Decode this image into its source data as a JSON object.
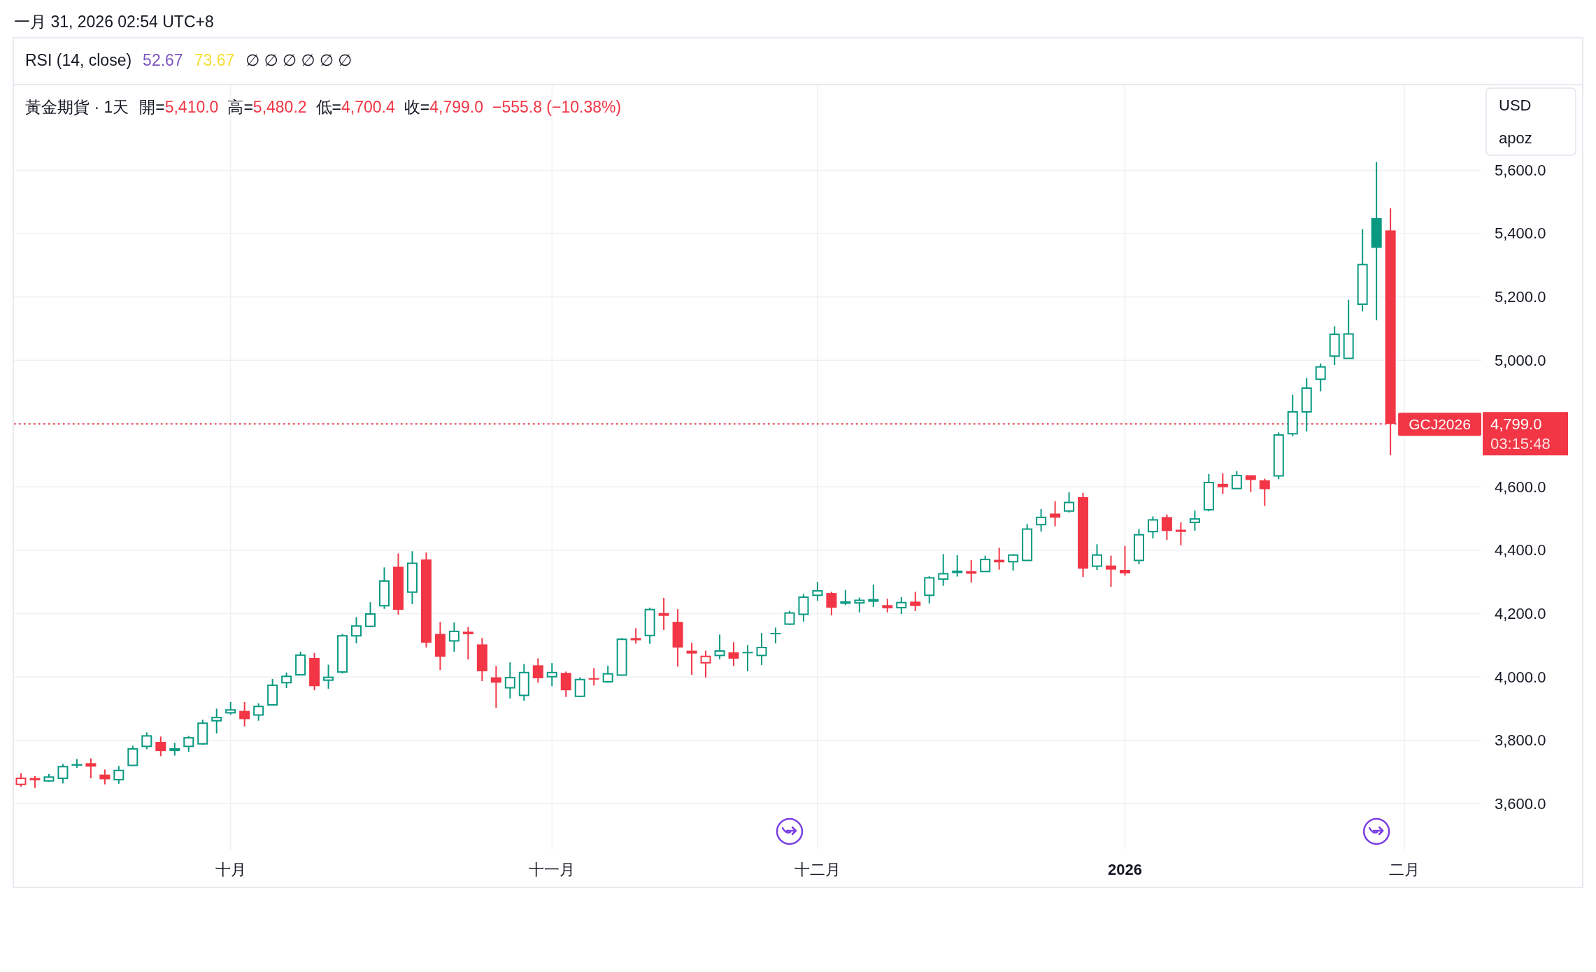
{
  "chart_data": {
    "type": "candlestick",
    "title": "黃金期貨 · 1天",
    "subtitle": "一月 31, 2026 02:54 UTC+8",
    "categories": [
      null,
      null,
      null,
      null,
      null,
      null,
      null,
      null,
      null,
      null,
      null,
      null,
      null,
      null,
      null,
      "十月",
      null,
      null,
      null,
      null,
      null,
      null,
      null,
      null,
      null,
      null,
      null,
      null,
      null,
      null,
      null,
      null,
      null,
      null,
      null,
      null,
      null,
      null,
      "十一月",
      null,
      null,
      null,
      null,
      null,
      null,
      null,
      null,
      null,
      null,
      null,
      null,
      null,
      null,
      null,
      null,
      null,
      null,
      "十二月",
      null,
      null,
      null,
      null,
      null,
      null,
      null,
      null,
      null,
      null,
      null,
      null,
      null,
      null,
      null,
      null,
      null,
      null,
      null,
      null,
      null,
      "2026",
      null,
      null,
      null,
      null,
      null,
      null,
      null,
      null,
      null,
      null,
      null,
      null,
      null,
      null,
      null,
      null,
      null,
      null,
      null,
      "二月"
    ],
    "ohlc": [
      [
        3661,
        3696,
        3654,
        3680
      ],
      [
        3681,
        3687,
        3650,
        3674
      ],
      [
        3672,
        3694,
        3669,
        3684
      ],
      [
        3680,
        3725,
        3664,
        3717
      ],
      [
        3725,
        3741,
        3713,
        3720
      ],
      [
        3728,
        3743,
        3680,
        3717
      ],
      [
        3692,
        3708,
        3661,
        3677
      ],
      [
        3676,
        3719,
        3663,
        3705
      ],
      [
        3721,
        3783,
        3721,
        3773
      ],
      [
        3781,
        3825,
        3772,
        3814
      ],
      [
        3795,
        3812,
        3750,
        3766
      ],
      [
        3771,
        3792,
        3752,
        3773
      ],
      [
        3781,
        3814,
        3764,
        3808
      ],
      [
        3789,
        3865,
        3786,
        3854
      ],
      [
        3862,
        3900,
        3822,
        3872
      ],
      [
        3887,
        3921,
        3881,
        3896
      ],
      [
        3893,
        3921,
        3844,
        3867
      ],
      [
        3880,
        3917,
        3862,
        3907
      ],
      [
        3912,
        3994,
        3910,
        3974
      ],
      [
        3982,
        4014,
        3965,
        4002
      ],
      [
        4007,
        4080,
        4006,
        4069
      ],
      [
        4060,
        4076,
        3958,
        3971
      ],
      [
        3990,
        4039,
        3963,
        3999
      ],
      [
        4016,
        4136,
        4011,
        4130
      ],
      [
        4130,
        4189,
        4106,
        4161
      ],
      [
        4160,
        4236,
        4157,
        4199
      ],
      [
        4225,
        4346,
        4215,
        4303
      ],
      [
        4348,
        4390,
        4197,
        4212
      ],
      [
        4268,
        4397,
        4230,
        4359
      ],
      [
        4371,
        4393,
        4093,
        4108
      ],
      [
        4136,
        4174,
        4022,
        4064
      ],
      [
        4114,
        4172,
        4080,
        4144
      ],
      [
        4143,
        4158,
        4055,
        4135
      ],
      [
        4103,
        4123,
        3987,
        4018
      ],
      [
        3999,
        4035,
        3903,
        3982
      ],
      [
        3966,
        4046,
        3932,
        3998
      ],
      [
        3942,
        4041,
        3925,
        4014
      ],
      [
        4037,
        4059,
        3982,
        3996
      ],
      [
        4001,
        4044,
        3971,
        4014
      ],
      [
        4013,
        4017,
        3937,
        3958
      ],
      [
        3939,
        3999,
        3936,
        3992
      ],
      [
        3994,
        4028,
        3973,
        3990
      ],
      [
        3985,
        4035,
        3982,
        4010
      ],
      [
        4006,
        4123,
        4005,
        4119
      ],
      [
        4123,
        4154,
        4105,
        4116
      ],
      [
        4131,
        4219,
        4105,
        4213
      ],
      [
        4202,
        4250,
        4148,
        4193
      ],
      [
        4174,
        4214,
        4033,
        4093
      ],
      [
        4083,
        4108,
        4007,
        4074
      ],
      [
        4045,
        4083,
        3998,
        4065
      ],
      [
        4068,
        4134,
        4056,
        4082
      ],
      [
        4078,
        4110,
        4035,
        4058
      ],
      [
        4077,
        4101,
        4018,
        4075
      ],
      [
        4068,
        4139,
        4038,
        4093
      ],
      [
        4137,
        4156,
        4106,
        4135
      ],
      [
        4167,
        4209,
        4164,
        4202
      ],
      [
        4198,
        4262,
        4175,
        4252
      ],
      [
        4258,
        4300,
        4241,
        4272
      ],
      [
        4265,
        4269,
        4195,
        4219
      ],
      [
        4239,
        4274,
        4227,
        4231
      ],
      [
        4234,
        4251,
        4204,
        4242
      ],
      [
        4243,
        4292,
        4221,
        4244
      ],
      [
        4227,
        4247,
        4204,
        4217
      ],
      [
        4219,
        4252,
        4199,
        4235
      ],
      [
        4238,
        4269,
        4208,
        4224
      ],
      [
        4258,
        4318,
        4232,
        4313
      ],
      [
        4309,
        4388,
        4288,
        4326
      ],
      [
        4336,
        4385,
        4317,
        4328
      ],
      [
        4334,
        4369,
        4298,
        4326
      ],
      [
        4333,
        4383,
        4332,
        4371
      ],
      [
        4370,
        4408,
        4339,
        4362
      ],
      [
        4364,
        4388,
        4336,
        4385
      ],
      [
        4368,
        4483,
        4368,
        4467
      ],
      [
        4481,
        4530,
        4459,
        4504
      ],
      [
        4516,
        4555,
        4476,
        4503
      ],
      [
        4524,
        4583,
        4519,
        4551
      ],
      [
        4568,
        4581,
        4316,
        4342
      ],
      [
        4350,
        4419,
        4338,
        4385
      ],
      [
        4352,
        4383,
        4285,
        4339
      ],
      [
        4338,
        4414,
        4320,
        4327
      ],
      [
        4368,
        4467,
        4356,
        4449
      ],
      [
        4459,
        4507,
        4438,
        4496
      ],
      [
        4505,
        4513,
        4433,
        4461
      ],
      [
        4465,
        4488,
        4416,
        4458
      ],
      [
        4488,
        4525,
        4462,
        4499
      ],
      [
        4528,
        4641,
        4523,
        4614
      ],
      [
        4610,
        4643,
        4578,
        4599
      ],
      [
        4595,
        4650,
        4594,
        4636
      ],
      [
        4637,
        4637,
        4584,
        4622
      ],
      [
        4621,
        4626,
        4540,
        4593
      ],
      [
        4635,
        4772,
        4625,
        4764
      ],
      [
        4768,
        4891,
        4760,
        4837
      ],
      [
        4837,
        4944,
        4775,
        4912
      ],
      [
        4940,
        4990,
        4902,
        4979
      ],
      [
        5013,
        5107,
        4985,
        5082
      ],
      [
        5006,
        5191,
        5006,
        5083
      ],
      [
        5177,
        5414,
        5154,
        5302
      ],
      [
        5449,
        5626,
        5126,
        5354.8
      ],
      [
        5410.0,
        5480.2,
        4700.4,
        4799.0
      ],
      null
    ],
    "colors": [
      "#f23645",
      "#f23645",
      "#089981",
      "#089981",
      "#089981",
      "#f23645",
      "#f23645",
      "#089981",
      "#089981",
      "#089981",
      "#f23645",
      "#089981",
      "#089981",
      "#089981",
      "#089981",
      "#089981",
      "#f23645",
      "#089981",
      "#089981",
      "#089981",
      "#089981",
      "#f23645",
      "#089981",
      "#089981",
      "#089981",
      "#089981",
      "#089981",
      "#f23645",
      "#089981",
      "#f23645",
      "#f23645",
      "#089981",
      "#f23645",
      "#f23645",
      "#f23645",
      "#089981",
      "#089981",
      "#f23645",
      "#089981",
      "#f23645",
      "#089981",
      "#f23645",
      "#089981",
      "#089981",
      "#f23645",
      "#089981",
      "#f23645",
      "#f23645",
      "#f23645",
      "#f23645",
      "#089981",
      "#f23645",
      "#089981",
      "#089981",
      "#089981",
      "#089981",
      "#089981",
      "#089981",
      "#f23645",
      "#089981",
      "#089981",
      "#089981",
      "#f23645",
      "#089981",
      "#f23645",
      "#089981",
      "#089981",
      "#089981",
      "#f23645",
      "#089981",
      "#f23645",
      "#089981",
      "#089981",
      "#089981",
      "#f23645",
      "#089981",
      "#f23645",
      "#089981",
      "#f23645",
      "#f23645",
      "#089981",
      "#089981",
      "#f23645",
      "#f23645",
      "#089981",
      "#089981",
      "#f23645",
      "#089981",
      "#f23645",
      "#f23645",
      "#089981",
      "#089981",
      "#089981",
      "#089981",
      "#089981",
      "#089981",
      "#089981",
      "#089981",
      "#f23645",
      null
    ],
    "ylim": [
      3455,
      5868
    ],
    "yticks": [
      {
        "value": 3600,
        "label": "3,600.0"
      },
      {
        "value": 3800,
        "label": "3,800.0"
      },
      {
        "value": 4000,
        "label": "4,000.0"
      },
      {
        "value": 4200,
        "label": "4,200.0"
      },
      {
        "value": 4400,
        "label": "4,400.0"
      },
      {
        "value": 4600,
        "label": "4,600.0"
      },
      {
        "value": 4800,
        "label": null
      },
      {
        "value": 5000,
        "label": "5,000.0"
      },
      {
        "value": 5200,
        "label": "5,200.0"
      },
      {
        "value": 5400,
        "label": "5,400.0"
      },
      {
        "value": 5600,
        "label": "5,600.0"
      }
    ],
    "grid": true,
    "ref_lines": [
      {
        "axis": "y",
        "value": 4799.0,
        "label": "GCJ2026",
        "color": "#f23645",
        "line_style": "dotted"
      }
    ],
    "annotations": [
      "RSI (14, close)",
      "52.67",
      "73.67",
      "∅  ∅  ∅  ∅  ∅  ∅",
      "開=5,410.0",
      "高=5,480.2",
      "低=4,700.4",
      "收=4,799.0",
      "−555.8 (−10.38%)",
      "USD",
      "apoz",
      "4,799.0",
      "03:15:48"
    ]
  }
}
